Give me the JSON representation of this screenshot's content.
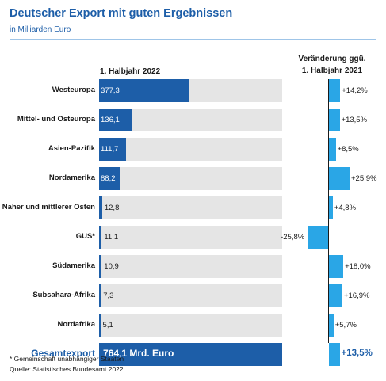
{
  "header": {
    "title": "Deutscher Export mit guten Ergebnissen",
    "subtitle": "in Milliarden Euro"
  },
  "columns": {
    "left": "1. Halbjahr 2022",
    "right_line1": "Veränderung ggü.",
    "right_line2": "1. Halbjahr 2021"
  },
  "colors": {
    "export_bar": "#1d5ea8",
    "bar_background": "#e5e5e5",
    "change_bar": "#2aa6e6",
    "title": "#1d5ea8"
  },
  "chart_data": {
    "type": "bar",
    "categories": [
      "Westeuropa",
      "Mittel- und Osteuropa",
      "Asien-Pazifik",
      "Nordamerika",
      "Naher und mittlerer Osten",
      "GUS*",
      "Südamerika",
      "Subsahara-Afrika",
      "Nordafrika"
    ],
    "series": [
      {
        "values": [
          377.3,
          136.1,
          111.7,
          88.2,
          12.8,
          11.1,
          10.9,
          7.3,
          5.1
        ],
        "labels": [
          "377,3",
          "136,1",
          "111,7",
          "88,2",
          "12,8",
          "11,1",
          "10,9",
          "7,3",
          "5,1"
        ]
      },
      {
        "values": [
          14.2,
          13.5,
          8.5,
          25.9,
          4.8,
          -25.8,
          18.0,
          16.9,
          5.7
        ],
        "labels": [
          "+14,2%",
          "+13,5%",
          "+8,5%",
          "+25,9%",
          "+4,8%",
          "-25,8%",
          "+18,0%",
          "+16,9%",
          "+5,7%"
        ]
      }
    ],
    "total": {
      "label": "Gesamtexport",
      "value": 764.1,
      "value_label": "764,1 Mrd. Euro",
      "change": 13.5,
      "change_label": "+13,5%"
    },
    "xlim": [
      0,
      764.1
    ],
    "change_range": [
      -25.8,
      25.9
    ]
  },
  "footnotes": {
    "note": "* Gemeinschaft unabhängiger Staaten",
    "source": "Quelle: Statistisches Bundesamt 2022"
  }
}
